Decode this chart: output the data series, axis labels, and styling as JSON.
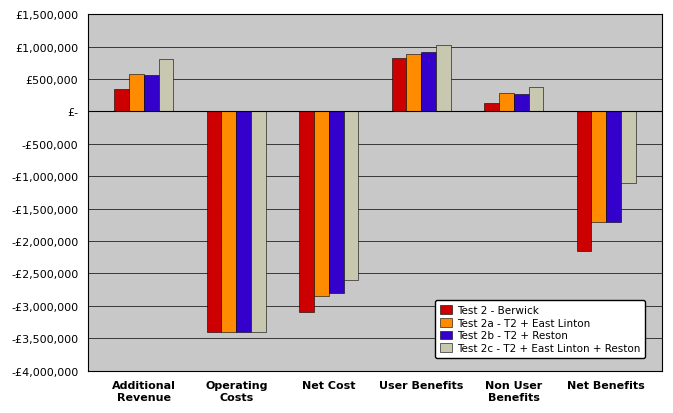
{
  "categories": [
    "Additional\nRevenue",
    "Operating\nCosts",
    "Net Cost",
    "User Benefits",
    "Non User\nBenefits",
    "Net Benefits"
  ],
  "series": {
    "Test 2 - Berwick": [
      350000,
      -3400000,
      -3100000,
      820000,
      130000,
      -2150000
    ],
    "Test 2a - T2 + East Linton": [
      570000,
      -3400000,
      -2850000,
      890000,
      290000,
      -1700000
    ],
    "Test 2b - T2 + Reston": [
      560000,
      -3400000,
      -2800000,
      920000,
      270000,
      -1700000
    ],
    "Test 2c - T2 + East Linton + Reston": [
      800000,
      -3400000,
      -2600000,
      1020000,
      370000,
      -1100000
    ]
  },
  "colors": {
    "Test 2 - Berwick": "#CC0000",
    "Test 2a - T2 + East Linton": "#FF8C00",
    "Test 2b - T2 + Reston": "#3300CC",
    "Test 2c - T2 + East Linton + Reston": "#C8C8B0"
  },
  "ylim": [
    -4000000,
    1500000
  ],
  "yticks": [
    -4000000,
    -3500000,
    -3000000,
    -2500000,
    -2000000,
    -1500000,
    -1000000,
    -500000,
    0,
    500000,
    1000000,
    1500000
  ],
  "figure_facecolor": "#FFFFFF",
  "plot_bg_color": "#C8C8C8"
}
